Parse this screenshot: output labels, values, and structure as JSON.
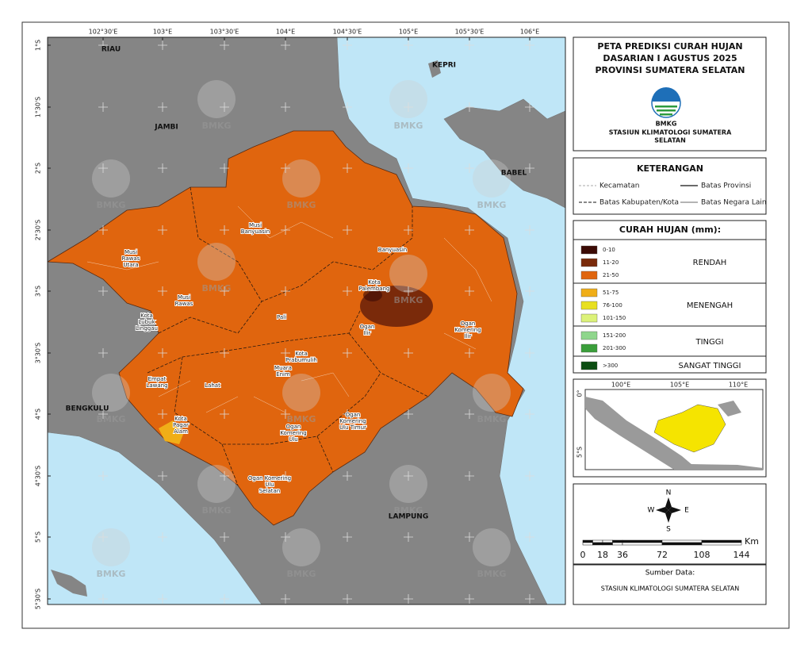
{
  "map": {
    "longitude_labels": [
      "102°30'E",
      "103°E",
      "103°30'E",
      "104°E",
      "104°30'E",
      "105°E",
      "105°30'E",
      "106°E"
    ],
    "latitude_labels": [
      "1°S",
      "1°30'S",
      "2°S",
      "2°30'S",
      "3°S",
      "3°30'S",
      "4°S",
      "4°30'S",
      "5°S",
      "5°30'S"
    ],
    "regions": [
      "RIAU",
      "JAMBI",
      "KEPRI",
      "BABEL",
      "BENGKULU",
      "LAMPUNG"
    ],
    "districts": [
      {
        "lines": [
          "Musi",
          "Rawas",
          "Utara"
        ]
      },
      {
        "lines": [
          "Musi",
          "Banyuasin"
        ]
      },
      {
        "lines": [
          "Banyuasin"
        ]
      },
      {
        "lines": [
          "Musi",
          "Rawas"
        ]
      },
      {
        "lines": [
          "Kota",
          "Lubuk",
          "Linggau"
        ]
      },
      {
        "lines": [
          "Pali"
        ]
      },
      {
        "lines": [
          "Kota",
          "Palembang"
        ]
      },
      {
        "lines": [
          "Ogan",
          "Ilir"
        ]
      },
      {
        "lines": [
          "Ogan",
          "Komering",
          "Ilir"
        ]
      },
      {
        "lines": [
          "Kota",
          "Prabumulih"
        ]
      },
      {
        "lines": [
          "Muara",
          "Enim"
        ]
      },
      {
        "lines": [
          "Empat",
          "Lawang"
        ]
      },
      {
        "lines": [
          "Lahat"
        ]
      },
      {
        "lines": [
          "Kota",
          "Pagar",
          "Alam"
        ]
      },
      {
        "lines": [
          "Ogan",
          "Komering",
          "Ulu"
        ]
      },
      {
        "lines": [
          "Ogan",
          "Komering",
          "Ulu Timur"
        ]
      },
      {
        "lines": [
          "Ogan Komering",
          "Ulu",
          "Selatan"
        ]
      }
    ],
    "watermark": "BMKG"
  },
  "header": {
    "title_lines": [
      "PETA PREDIKSI CURAH HUJAN",
      "DASARIAN I AGUSTUS 2025",
      "PROVINSI SUMATERA SELATAN"
    ],
    "agency": "BMKG",
    "station_lines": [
      "STASIUN KLIMATOLOGI SUMATERA",
      "SELATAN"
    ]
  },
  "keterangan": {
    "title": "KETERANGAN",
    "items": [
      "Kecamatan",
      "Batas Provinsi",
      "Batas Kabupaten/Kota",
      "Batas Negara Lain"
    ]
  },
  "rainfall_legend": {
    "title": "CURAH HUJAN (mm):",
    "groups": [
      {
        "name": "RENDAH",
        "classes": [
          {
            "label": "0-10",
            "color": "#3b0a05"
          },
          {
            "label": "11-20",
            "color": "#7a2a0a"
          },
          {
            "label": "21-50",
            "color": "#e0650e"
          }
        ]
      },
      {
        "name": "MENENGAH",
        "classes": [
          {
            "label": "51-75",
            "color": "#f0ae18"
          },
          {
            "label": "76-100",
            "color": "#e8e020"
          },
          {
            "label": "101-150",
            "color": "#dcf27a"
          }
        ]
      },
      {
        "name": "TINGGI",
        "classes": [
          {
            "label": "151-200",
            "color": "#8fd68c"
          },
          {
            "label": "201-300",
            "color": "#3a9e3a"
          }
        ]
      },
      {
        "name": "SANGAT TINGGI",
        "classes": [
          {
            "label": ">300",
            "color": "#0b4d12"
          }
        ]
      }
    ]
  },
  "inset": {
    "longitude_labels": [
      "100°E",
      "105°E",
      "110°E"
    ],
    "latitude_labels": [
      "0°",
      "5°S"
    ]
  },
  "compass": {
    "north": "N",
    "south": "S",
    "east": "E",
    "west": "W"
  },
  "scale_bar": {
    "unit": "Km",
    "labels": [
      0,
      18,
      36,
      72,
      108,
      144
    ]
  },
  "source": {
    "title": "Sumber Data:",
    "text": "STASIUN KLIMATOLOGI SUMATERA SELATAN"
  }
}
